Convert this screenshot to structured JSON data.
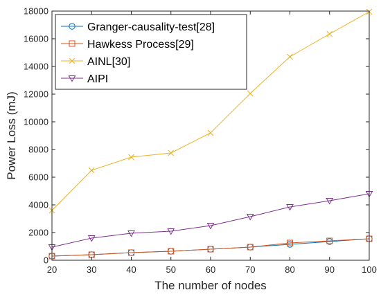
{
  "chart_data": {
    "type": "line",
    "title": "",
    "xlabel": "The number of nodes",
    "ylabel": "Power Loss (mJ)",
    "x": [
      20,
      30,
      40,
      50,
      60,
      70,
      80,
      90,
      100
    ],
    "xlim": [
      20,
      100
    ],
    "ylim": [
      0,
      18000
    ],
    "xticks": [
      "20",
      "30",
      "40",
      "50",
      "60",
      "70",
      "80",
      "90",
      "100"
    ],
    "yticks": [
      "0",
      "2000",
      "4000",
      "6000",
      "8000",
      "10000",
      "12000",
      "14000",
      "16000",
      "18000"
    ],
    "grid": false,
    "legend_position": "top-left",
    "series": [
      {
        "name": "Granger-causality-test[28]",
        "color": "#0072BD",
        "marker": "circle",
        "values": [
          300,
          400,
          550,
          650,
          800,
          950,
          1150,
          1350,
          1550
        ]
      },
      {
        "name": "Hawkess Process[29]",
        "color": "#D95319",
        "marker": "square",
        "values": [
          300,
          400,
          550,
          650,
          800,
          950,
          1250,
          1400,
          1550
        ]
      },
      {
        "name": "AINL[30]",
        "color": "#EDB120",
        "marker": "x",
        "values": [
          3600,
          6500,
          7450,
          7750,
          9200,
          12050,
          14700,
          16350,
          17950
        ]
      },
      {
        "name": "AIPI",
        "color": "#7E2F8E",
        "marker": "triangle-down",
        "values": [
          950,
          1600,
          1950,
          2100,
          2500,
          3150,
          3850,
          4300,
          4800
        ]
      }
    ]
  }
}
